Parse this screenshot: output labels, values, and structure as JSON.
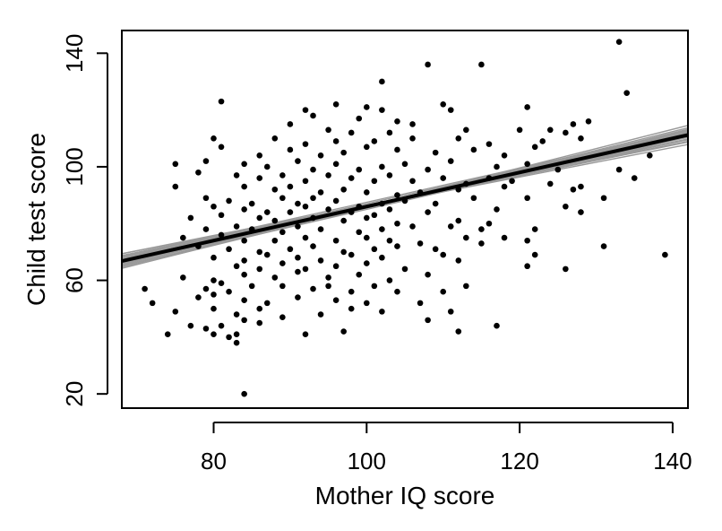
{
  "chart_data": {
    "type": "scatter",
    "title": "",
    "xlabel": "Mother IQ score",
    "ylabel": "Child test score",
    "xlim": [
      68,
      142
    ],
    "ylim": [
      15,
      148
    ],
    "xticks": [
      80,
      100,
      120,
      140
    ],
    "yticks": [
      20,
      60,
      100,
      140
    ],
    "grid": false,
    "legend": "none",
    "colors": {
      "points": "#000000",
      "fit_line": "#000000",
      "sim_lines": "#9a9a9a"
    },
    "fit_line": {
      "intercept": 26.0,
      "slope": 0.6
    },
    "sim_lines": [
      {
        "intercept": 24.0,
        "slope": 0.62
      },
      {
        "intercept": 28.0,
        "slope": 0.58
      },
      {
        "intercept": 22.0,
        "slope": 0.64
      },
      {
        "intercept": 30.0,
        "slope": 0.56
      },
      {
        "intercept": 20.0,
        "slope": 0.66
      },
      {
        "intercept": 32.0,
        "slope": 0.54
      },
      {
        "intercept": 25.0,
        "slope": 0.61
      },
      {
        "intercept": 27.0,
        "slope": 0.59
      },
      {
        "intercept": 18.0,
        "slope": 0.68
      },
      {
        "intercept": 34.0,
        "slope": 0.52
      },
      {
        "intercept": 23.0,
        "slope": 0.62
      },
      {
        "intercept": 29.0,
        "slope": 0.575
      },
      {
        "intercept": 21.0,
        "slope": 0.645
      },
      {
        "intercept": 31.0,
        "slope": 0.555
      },
      {
        "intercept": 26.5,
        "slope": 0.605
      },
      {
        "intercept": 24.5,
        "slope": 0.61
      },
      {
        "intercept": 19.5,
        "slope": 0.66
      },
      {
        "intercept": 33.0,
        "slope": 0.535
      },
      {
        "intercept": 27.5,
        "slope": 0.6
      },
      {
        "intercept": 22.5,
        "slope": 0.635
      }
    ],
    "points": [
      [
        133,
        144
      ],
      [
        134,
        126
      ],
      [
        102,
        130
      ],
      [
        108,
        136
      ],
      [
        115,
        136
      ],
      [
        81,
        123
      ],
      [
        96,
        122
      ],
      [
        110,
        122
      ],
      [
        121,
        121
      ],
      [
        92,
        120
      ],
      [
        100,
        121
      ],
      [
        102,
        120
      ],
      [
        111,
        120
      ],
      [
        93,
        118
      ],
      [
        99,
        117
      ],
      [
        104,
        116
      ],
      [
        106,
        115
      ],
      [
        90,
        115
      ],
      [
        129,
        116
      ],
      [
        127,
        115
      ],
      [
        95,
        113
      ],
      [
        98,
        112
      ],
      [
        103,
        112
      ],
      [
        113,
        113
      ],
      [
        120,
        113
      ],
      [
        124,
        113
      ],
      [
        126,
        112
      ],
      [
        80,
        110
      ],
      [
        88,
        110
      ],
      [
        92,
        108
      ],
      [
        96,
        109
      ],
      [
        101,
        109
      ],
      [
        106,
        110
      ],
      [
        112,
        110
      ],
      [
        116,
        108
      ],
      [
        123,
        109
      ],
      [
        128,
        110
      ],
      [
        81,
        107
      ],
      [
        86,
        104
      ],
      [
        90,
        106
      ],
      [
        94,
        104
      ],
      [
        97,
        105
      ],
      [
        100,
        107
      ],
      [
        104,
        106
      ],
      [
        109,
        105
      ],
      [
        114,
        106
      ],
      [
        118,
        104
      ],
      [
        122,
        107
      ],
      [
        137,
        104
      ],
      [
        75,
        101
      ],
      [
        79,
        102
      ],
      [
        84,
        101
      ],
      [
        87,
        100
      ],
      [
        91,
        102
      ],
      [
        93,
        99
      ],
      [
        96,
        101
      ],
      [
        99,
        99
      ],
      [
        102,
        100
      ],
      [
        105,
        101
      ],
      [
        108,
        99
      ],
      [
        111,
        102
      ],
      [
        117,
        100
      ],
      [
        121,
        101
      ],
      [
        125,
        99
      ],
      [
        133,
        99
      ],
      [
        78,
        98
      ],
      [
        83,
        97
      ],
      [
        86,
        96
      ],
      [
        89,
        97
      ],
      [
        92,
        95
      ],
      [
        95,
        97
      ],
      [
        98,
        96
      ],
      [
        101,
        95
      ],
      [
        103,
        97
      ],
      [
        106,
        95
      ],
      [
        110,
        96
      ],
      [
        113,
        94
      ],
      [
        116,
        96
      ],
      [
        119,
        95
      ],
      [
        124,
        94
      ],
      [
        128,
        93
      ],
      [
        135,
        96
      ],
      [
        75,
        93
      ],
      [
        84,
        93
      ],
      [
        88,
        92
      ],
      [
        90,
        93
      ],
      [
        94,
        91
      ],
      [
        97,
        92
      ],
      [
        100,
        91
      ],
      [
        104,
        90
      ],
      [
        107,
        91
      ],
      [
        112,
        92
      ],
      [
        118,
        93
      ],
      [
        127,
        92
      ],
      [
        79,
        89
      ],
      [
        82,
        88
      ],
      [
        85,
        87
      ],
      [
        89,
        89
      ],
      [
        91,
        87
      ],
      [
        93,
        89
      ],
      [
        96,
        88
      ],
      [
        99,
        86
      ],
      [
        102,
        87
      ],
      [
        105,
        88
      ],
      [
        109,
        87
      ],
      [
        114,
        89
      ],
      [
        121,
        89
      ],
      [
        131,
        89
      ],
      [
        80,
        86
      ],
      [
        84,
        85
      ],
      [
        87,
        84
      ],
      [
        90,
        84
      ],
      [
        92,
        86
      ],
      [
        95,
        85
      ],
      [
        98,
        84
      ],
      [
        101,
        83
      ],
      [
        103,
        85
      ],
      [
        108,
        84
      ],
      [
        117,
        85
      ],
      [
        126,
        86
      ],
      [
        128,
        84
      ],
      [
        77,
        82
      ],
      [
        81,
        83
      ],
      [
        86,
        82
      ],
      [
        88,
        81
      ],
      [
        93,
        82
      ],
      [
        97,
        81
      ],
      [
        100,
        82
      ],
      [
        104,
        80
      ],
      [
        112,
        81
      ],
      [
        116,
        80
      ],
      [
        79,
        78
      ],
      [
        83,
        79
      ],
      [
        85,
        78
      ],
      [
        89,
        77
      ],
      [
        91,
        79
      ],
      [
        94,
        78
      ],
      [
        99,
        77
      ],
      [
        102,
        78
      ],
      [
        106,
        79
      ],
      [
        111,
        79
      ],
      [
        115,
        78
      ],
      [
        122,
        78
      ],
      [
        76,
        75
      ],
      [
        81,
        76
      ],
      [
        84,
        74
      ],
      [
        88,
        74
      ],
      [
        92,
        75
      ],
      [
        96,
        74
      ],
      [
        100,
        75
      ],
      [
        103,
        74
      ],
      [
        107,
        73
      ],
      [
        113,
        75
      ],
      [
        118,
        75
      ],
      [
        131,
        72
      ],
      [
        78,
        72
      ],
      [
        82,
        71
      ],
      [
        86,
        70
      ],
      [
        90,
        71
      ],
      [
        93,
        72
      ],
      [
        97,
        70
      ],
      [
        101,
        71
      ],
      [
        104,
        72
      ],
      [
        109,
        71
      ],
      [
        115,
        73
      ],
      [
        121,
        74
      ],
      [
        80,
        68
      ],
      [
        84,
        67
      ],
      [
        87,
        69
      ],
      [
        91,
        68
      ],
      [
        94,
        67
      ],
      [
        98,
        69
      ],
      [
        102,
        68
      ],
      [
        110,
        69
      ],
      [
        122,
        69
      ],
      [
        139,
        69
      ],
      [
        83,
        65
      ],
      [
        86,
        64
      ],
      [
        89,
        66
      ],
      [
        92,
        64
      ],
      [
        96,
        65
      ],
      [
        100,
        66
      ],
      [
        105,
        64
      ],
      [
        112,
        67
      ],
      [
        121,
        65
      ],
      [
        126,
        64
      ],
      [
        76,
        61
      ],
      [
        80,
        60
      ],
      [
        84,
        62
      ],
      [
        88,
        61
      ],
      [
        91,
        63
      ],
      [
        95,
        61
      ],
      [
        99,
        62
      ],
      [
        103,
        60
      ],
      [
        108,
        62
      ],
      [
        79,
        57
      ],
      [
        81,
        59
      ],
      [
        82,
        56
      ],
      [
        85,
        58
      ],
      [
        89,
        58
      ],
      [
        93,
        57
      ],
      [
        95,
        58
      ],
      [
        98,
        56
      ],
      [
        101,
        58
      ],
      [
        104,
        56
      ],
      [
        110,
        56
      ],
      [
        113,
        58
      ],
      [
        71,
        57
      ],
      [
        78,
        54
      ],
      [
        80,
        55
      ],
      [
        84,
        53
      ],
      [
        87,
        52
      ],
      [
        91,
        54
      ],
      [
        96,
        53
      ],
      [
        100,
        52
      ],
      [
        107,
        52
      ],
      [
        72,
        52
      ],
      [
        75,
        49
      ],
      [
        80,
        50
      ],
      [
        83,
        48
      ],
      [
        86,
        50
      ],
      [
        89,
        47
      ],
      [
        94,
        48
      ],
      [
        98,
        50
      ],
      [
        102,
        49
      ],
      [
        111,
        49
      ],
      [
        84,
        46
      ],
      [
        81,
        44
      ],
      [
        77,
        44
      ],
      [
        83,
        41
      ],
      [
        79,
        43
      ],
      [
        82,
        40
      ],
      [
        86,
        45
      ],
      [
        74,
        41
      ],
      [
        80,
        41
      ],
      [
        92,
        41
      ],
      [
        97,
        42
      ],
      [
        108,
        46
      ],
      [
        112,
        42
      ],
      [
        117,
        44
      ],
      [
        83,
        38
      ],
      [
        84,
        20
      ]
    ]
  }
}
